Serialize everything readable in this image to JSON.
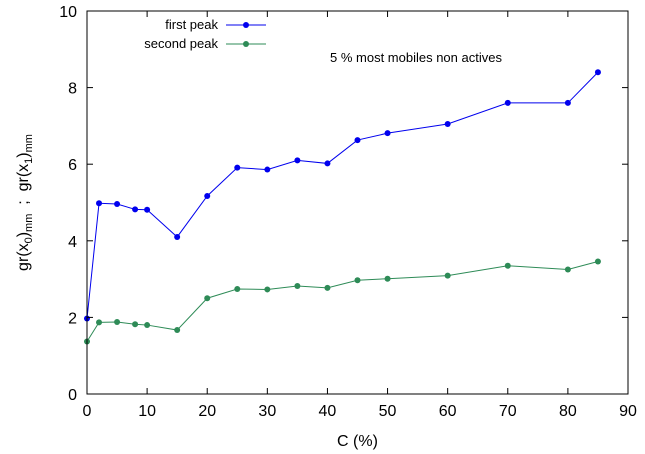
{
  "chart_data": {
    "type": "line",
    "xlabel": "C  (%)",
    "ylabel": "gr(x0)mm  ;  gr(x1)mm",
    "ylabel_parts": {
      "a": "gr(x",
      "a_sub": "0",
      "b": ")",
      "b_sub": "mm",
      "sep": "  ;  ",
      "c": "gr(x",
      "c_sub": "1",
      "d": ")",
      "d_sub": "mm"
    },
    "annotation": "5 % most mobiles non actives",
    "xlim": [
      0,
      90
    ],
    "ylim": [
      0,
      10
    ],
    "xticks": [
      0,
      10,
      20,
      30,
      40,
      50,
      60,
      70,
      80,
      90
    ],
    "yticks": [
      0,
      2,
      4,
      6,
      8,
      10
    ],
    "grid": false,
    "legend_position": "top-left",
    "x": [
      0,
      2,
      5,
      8,
      10,
      15,
      20,
      25,
      30,
      35,
      40,
      45,
      50,
      60,
      70,
      80,
      85
    ],
    "series": [
      {
        "name": "first peak",
        "color": "#0000ee",
        "values": [
          1.97,
          4.98,
          4.96,
          4.82,
          4.81,
          4.1,
          5.17,
          5.91,
          5.86,
          6.1,
          6.02,
          6.63,
          6.81,
          7.05,
          7.6,
          7.6,
          8.4
        ]
      },
      {
        "name": "second peak",
        "color": "#2e8b57",
        "values": [
          1.37,
          1.87,
          1.88,
          1.82,
          1.8,
          1.67,
          2.5,
          2.74,
          2.73,
          2.82,
          2.77,
          2.97,
          3.01,
          3.09,
          3.35,
          3.25,
          3.46
        ]
      }
    ]
  }
}
